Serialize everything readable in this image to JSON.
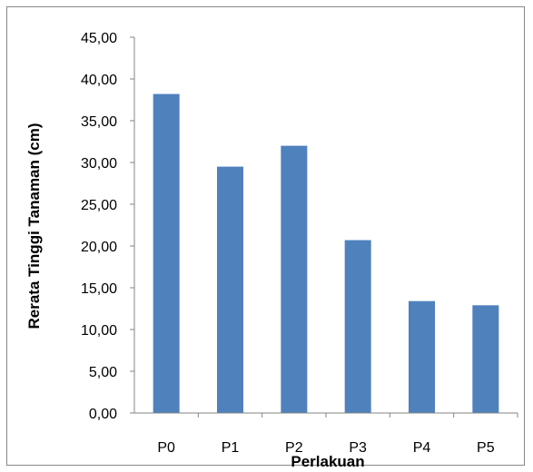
{
  "chart_data": {
    "type": "bar",
    "categories": [
      "P0",
      "P1",
      "P2",
      "P3",
      "P4",
      "P5"
    ],
    "values": [
      38.2,
      29.5,
      32.0,
      20.7,
      13.4,
      12.9
    ],
    "xlabel": "Perlakuan",
    "ylabel": "Rerata Tinggi Tanaman (cm)",
    "ylim": [
      0,
      45
    ],
    "yticks": [
      "0,00",
      "5,00",
      "10,00",
      "15,00",
      "20,00",
      "25,00",
      "30,00",
      "35,00",
      "40,00",
      "45,00"
    ],
    "grid": false,
    "legend": "none",
    "bar_color": "#4f81bd",
    "axis_color": "#858585"
  }
}
